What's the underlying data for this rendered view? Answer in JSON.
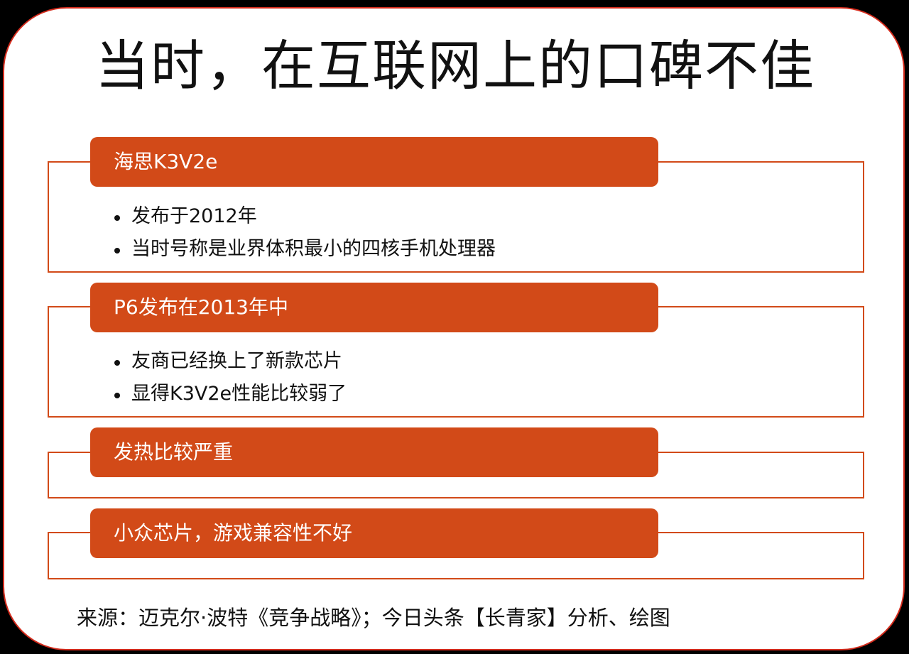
{
  "title": "当时，在互联网上的口碑不佳",
  "sections": [
    {
      "header": "海思K3V2e",
      "bullets": [
        "发布于2012年",
        "当时号称是业界体积最小的四核手机处理器"
      ]
    },
    {
      "header": "P6发布在2013年中",
      "bullets": [
        "友商已经换上了新款芯片",
        "显得K3V2e性能比较弱了"
      ]
    },
    {
      "header": "发热比较严重",
      "bullets": []
    },
    {
      "header": "小众芯片，游戏兼容性不好",
      "bullets": []
    }
  ],
  "source": "来源：迈克尔·波特《竞争战略》；今日头条【长青家】分析、绘图",
  "colors": {
    "background": "#000000",
    "card_border": "#d42b1c",
    "accent": "#d24a18",
    "text": "#111111"
  }
}
